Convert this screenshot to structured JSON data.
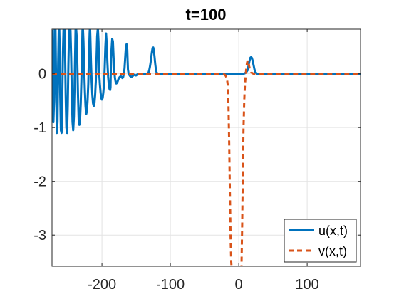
{
  "chart_data": {
    "type": "line",
    "title": "t=100",
    "xlabel": "",
    "ylabel": "",
    "xlim": [
      -273,
      178
    ],
    "ylim": [
      -3.58,
      0.83
    ],
    "xticks": [
      -200,
      -100,
      0,
      100
    ],
    "yticks": [
      -3,
      -2,
      -1,
      0
    ],
    "xtick_labels": [
      "-200",
      "-100",
      "0",
      "100"
    ],
    "ytick_labels": [
      "-3",
      "-2",
      "-1",
      "0"
    ],
    "grid": true,
    "legend_position": "bottom-right",
    "series": [
      {
        "name": "u(x,t)",
        "color": "#0072BD",
        "style": "solid",
        "x": [
          -273,
          -271,
          -270,
          -269.5,
          -269,
          -268,
          -267,
          -266,
          -265,
          -264,
          -263,
          -262.5,
          -262,
          -261,
          -260,
          -259,
          -258,
          -257,
          -256,
          -255,
          -254.5,
          -254,
          -253,
          -252,
          -251,
          -250,
          -249,
          -248,
          -247,
          -246.5,
          -246,
          -245,
          -244,
          -243,
          -242,
          -241,
          -240,
          -239,
          -238.5,
          -238,
          -237,
          -236,
          -235,
          -234,
          -233,
          -232,
          -231,
          -230,
          -229,
          -228.5,
          -228,
          -227,
          -226,
          -225,
          -224,
          -223,
          -222,
          -221,
          -220,
          -219,
          -218,
          -217.5,
          -217,
          -216,
          -215,
          -214,
          -213,
          -212,
          -211,
          -210,
          -209,
          -208,
          -207,
          -206,
          -205,
          -204.5,
          -204,
          -203,
          -202,
          -201,
          -200,
          -199,
          -198,
          -197,
          -196,
          -195,
          -194,
          -193,
          -192,
          -191,
          -190,
          -189,
          -188,
          -187.5,
          -187,
          -186,
          -185,
          -184,
          -183,
          -182,
          -181,
          -180,
          -179,
          -178,
          -177,
          -176,
          -175,
          -174,
          -173,
          -172,
          -171,
          -170,
          -169,
          -168,
          -167,
          -166,
          -165,
          -164,
          -163,
          -162.5,
          -162,
          -161,
          -160,
          -159,
          -158,
          -157,
          -156,
          -155,
          -154,
          -153,
          -152,
          -151,
          -150,
          -149,
          -148,
          -147,
          -146,
          -145,
          -144,
          -143,
          -142,
          -141,
          -140,
          -139,
          -138,
          -137,
          -136,
          -135,
          -134,
          -133,
          -132,
          -131,
          -130,
          -129,
          -128,
          -127,
          -126,
          -125,
          -124,
          -123,
          -122,
          -121,
          -120,
          -118,
          -115,
          -110,
          -100,
          -80,
          -60,
          -40,
          -20,
          -10,
          -5,
          0,
          3,
          5,
          7,
          9,
          11,
          13,
          14,
          15,
          16,
          17,
          18,
          19,
          20,
          21,
          22,
          23,
          24,
          25,
          26,
          27,
          28,
          30,
          33,
          36,
          40,
          50,
          60,
          80,
          100,
          120,
          140,
          160,
          178
        ],
        "y": [
          0.8,
          -0.9,
          -0.5,
          0.5,
          0.9,
          0.9,
          -0.2,
          -1.1,
          -0.9,
          0.2,
          0.9,
          0.9,
          0.6,
          -0.4,
          -1.05,
          -1.1,
          -0.4,
          0.4,
          0.9,
          0.9,
          0.8,
          0.5,
          -0.4,
          -1.0,
          -1.1,
          -0.6,
          0.2,
          0.8,
          0.9,
          0.9,
          0.8,
          0.3,
          -0.4,
          -0.9,
          -1.05,
          -0.8,
          -0.2,
          0.5,
          0.9,
          0.9,
          0.7,
          0.2,
          -0.4,
          -0.85,
          -0.95,
          -0.85,
          -0.55,
          -0.1,
          0.4,
          0.8,
          0.9,
          0.6,
          0.1,
          -0.3,
          -0.6,
          -0.75,
          -0.7,
          -0.5,
          -0.2,
          0.3,
          0.75,
          0.9,
          0.7,
          0.2,
          -0.15,
          -0.4,
          -0.55,
          -0.6,
          -0.55,
          -0.4,
          -0.15,
          0.25,
          0.7,
          0.85,
          0.6,
          0.3,
          0.0,
          -0.2,
          -0.35,
          -0.45,
          -0.48,
          -0.45,
          -0.35,
          -0.2,
          0.1,
          0.5,
          0.75,
          0.55,
          0.2,
          -0.05,
          -0.2,
          -0.28,
          -0.3,
          -0.25,
          0.1,
          0.45,
          0.65,
          0.6,
          0.3,
          0.05,
          -0.08,
          -0.15,
          -0.18,
          -0.17,
          -0.14,
          -0.1,
          -0.08,
          -0.06,
          -0.05,
          -0.05,
          -0.07,
          -0.08,
          -0.06,
          0.0,
          0.1,
          0.3,
          0.5,
          0.55,
          0.45,
          0.25,
          0.08,
          0.0,
          -0.02,
          -0.04,
          -0.05,
          -0.06,
          -0.05,
          -0.04,
          -0.03,
          -0.02,
          -0.02,
          -0.03,
          -0.03,
          -0.02,
          -0.01,
          0.0,
          0.0,
          0.0,
          0.0,
          0.0,
          0.0,
          0.0,
          0.0,
          0.0,
          0.0,
          0.0,
          0.0,
          0.0,
          0.0,
          0.0,
          0.02,
          0.06,
          0.12,
          0.2,
          0.3,
          0.4,
          0.48,
          0.49,
          0.42,
          0.3,
          0.17,
          0.07,
          0.02,
          0.0,
          0.0,
          0.0,
          0.0,
          0.0,
          0.0,
          0.0,
          0.0,
          0.0,
          0.0,
          0.0,
          0.0,
          0.0,
          0.0,
          0.01,
          0.03,
          0.07,
          0.13,
          0.2,
          0.26,
          0.3,
          0.31,
          0.3,
          0.26,
          0.2,
          0.14,
          0.08,
          0.04,
          0.02,
          0.01,
          0.0,
          0.0,
          0.0,
          0.0,
          0.0,
          0.0,
          0.0,
          0.0,
          0.0,
          0.0,
          0.0,
          0.0,
          0.0,
          0.0
        ]
      },
      {
        "name": "v(x,t)",
        "color": "#D95319",
        "style": "dashed",
        "x": [
          -273,
          -200,
          -100,
          -50,
          -30,
          -25,
          -22,
          -20,
          -19,
          -18,
          -17,
          -16,
          -15,
          -14,
          -13,
          -12,
          -11,
          -10,
          -9,
          -8,
          -7,
          -6,
          -5,
          -4,
          -3,
          -2,
          -1,
          0,
          1,
          2,
          3,
          4,
          5,
          6,
          7,
          8,
          9,
          10,
          11,
          12,
          13,
          14,
          15,
          16,
          17,
          18,
          20,
          22,
          25,
          30,
          40,
          60,
          100,
          178
        ],
        "y": [
          0.0,
          0.0,
          0.0,
          0.0,
          0.0,
          0.0,
          -0.01,
          -0.02,
          -0.04,
          -0.07,
          -0.12,
          -0.22,
          -0.6,
          -1.3,
          -2.2,
          -3.0,
          -3.5,
          -3.7,
          -3.8,
          -3.8,
          -3.8,
          -3.8,
          -3.8,
          -3.8,
          -3.8,
          -3.8,
          -3.8,
          -3.8,
          -3.8,
          -3.8,
          -3.8,
          -3.6,
          -2.8,
          -1.8,
          -1.0,
          -0.5,
          -0.2,
          -0.05,
          0.1,
          0.2,
          0.25,
          0.22,
          0.15,
          0.1,
          0.06,
          0.03,
          0.01,
          0.0,
          0.0,
          0.0,
          0.0,
          0.0,
          0.0,
          0.0
        ]
      }
    ]
  }
}
